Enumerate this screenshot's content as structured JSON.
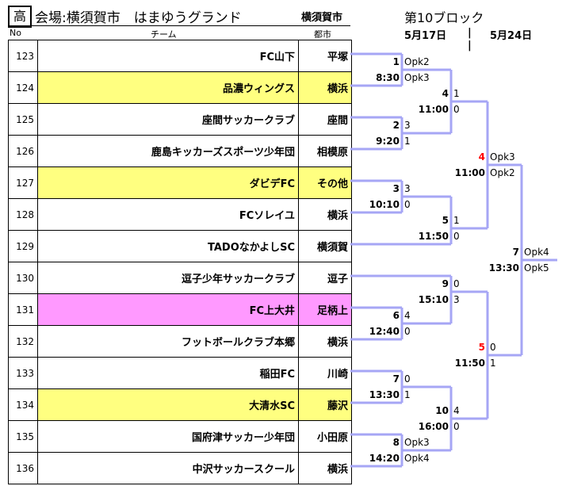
{
  "header": {
    "grade": "高",
    "title": "会場:横須賀市　はまゆうグランド",
    "city": "横須賀市",
    "block": "第10ブロック",
    "date1": "5月17日",
    "separator": "|",
    "date2": "5月24日"
  },
  "columns": {
    "no": "No",
    "team": "チーム",
    "city": "都市"
  },
  "rows": [
    {
      "no": "123",
      "team": "FC山下",
      "city": "平塚",
      "highlight": "none"
    },
    {
      "no": "124",
      "team": "品濃ウィングス",
      "city": "横浜",
      "highlight": "yellow"
    },
    {
      "no": "125",
      "team": "座間サッカークラブ",
      "city": "座間",
      "highlight": "none"
    },
    {
      "no": "126",
      "team": "鹿島キッカーズスポーツ少年団",
      "city": "相模原",
      "highlight": "none"
    },
    {
      "no": "127",
      "team": "ダビデFC",
      "city": "その他",
      "highlight": "yellow"
    },
    {
      "no": "128",
      "team": "FCソレイユ",
      "city": "横浜",
      "highlight": "none"
    },
    {
      "no": "129",
      "team": "TADOなかよしSC",
      "city": "横須賀",
      "highlight": "none"
    },
    {
      "no": "130",
      "team": "逗子少年サッカークラブ",
      "city": "逗子",
      "highlight": "none"
    },
    {
      "no": "131",
      "team": "FC上大井",
      "city": "足柄上",
      "highlight": "pink"
    },
    {
      "no": "132",
      "team": "フットボールクラブ本郷",
      "city": "横浜",
      "highlight": "none"
    },
    {
      "no": "133",
      "team": "稲田FC",
      "city": "川崎",
      "highlight": "none"
    },
    {
      "no": "134",
      "team": "大清水SC",
      "city": "藤沢",
      "highlight": "yellow"
    },
    {
      "no": "135",
      "team": "国府津サッカー少年団",
      "city": "小田原",
      "highlight": "none"
    },
    {
      "no": "136",
      "team": "中沢サッカースクール",
      "city": "横浜",
      "highlight": "none"
    }
  ],
  "matches": [
    {
      "num": "1",
      "time": "8:30",
      "score_top": "Opk2",
      "score_bottom": "Opk3"
    },
    {
      "num": "2",
      "time": "9:20",
      "score_top": "3",
      "score_bottom": "1"
    },
    {
      "num": "3",
      "time": "10:10",
      "score_top": "3",
      "score_bottom": "0"
    },
    {
      "num": "4",
      "time": "11:00",
      "score_top": "1",
      "score_bottom": "0"
    },
    {
      "num": "5",
      "time": "11:50",
      "score_top": "1",
      "score_bottom": "0"
    },
    {
      "num": "6",
      "time": "12:40",
      "score_top": "4",
      "score_bottom": "0"
    },
    {
      "num": "7",
      "time": "13:30",
      "score_top": "0",
      "score_bottom": "1"
    },
    {
      "num": "8",
      "time": "14:20",
      "score_top": "Opk3",
      "score_bottom": "Opk4"
    },
    {
      "num": "9",
      "time": "15:10",
      "score_top": "0",
      "score_bottom": "3"
    },
    {
      "num": "10",
      "time": "16:00",
      "score_top": "4",
      "score_bottom": "0"
    },
    {
      "num": "4",
      "time": "11:00",
      "score_top": "Opk3",
      "score_bottom": "Opk2",
      "num_color": "#ff0000"
    },
    {
      "num": "5",
      "time": "11:50",
      "score_top": "0",
      "score_bottom": "1",
      "num_color": "#ff0000"
    },
    {
      "num": "7",
      "time": "13:30",
      "score_top": "Opk4",
      "score_bottom": "Opk5"
    }
  ],
  "colors": {
    "bracket": "#a6a6f5",
    "yellow": "#ffff80",
    "pink": "#ff99ff",
    "semi_number": "#ff0000"
  }
}
